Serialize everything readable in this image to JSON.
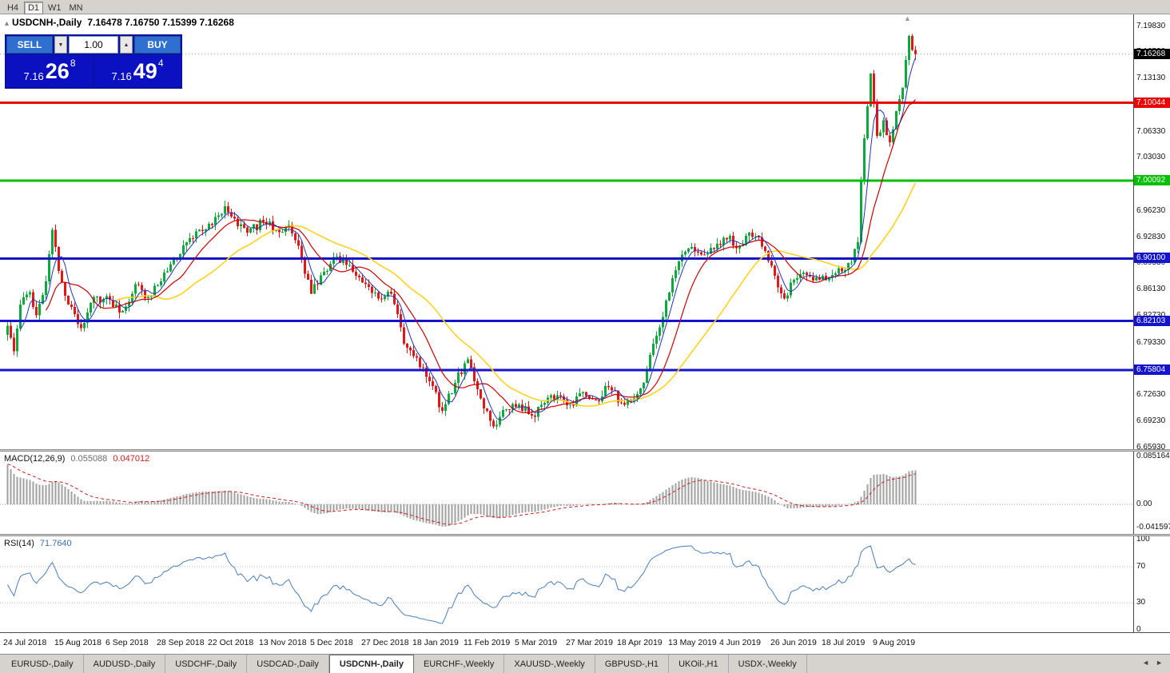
{
  "toolbar": {
    "timeframes": [
      "H4",
      "D1",
      "W1",
      "MN"
    ],
    "active_timeframe": "D1"
  },
  "chart_header": {
    "icon": "▴",
    "symbol": "USDCNH-,Daily",
    "ohlc_text": "7.16478 7.16750 7.15399 7.16268"
  },
  "one_click": {
    "sell_label": "SELL",
    "buy_label": "BUY",
    "volume": "1.00",
    "down_icon": "▼",
    "up_icon": "▲",
    "sell_price": {
      "prefix": "7.16",
      "big": "26",
      "sup": "8"
    },
    "buy_price": {
      "prefix": "7.16",
      "big": "49",
      "sup": "4"
    }
  },
  "icons": {
    "shift_marker": "▲"
  },
  "colors": {
    "bull": "#0caa3c",
    "bear": "#e41616",
    "ma_fast": "#2233bb",
    "ma_mid": "#cc0000",
    "ma_slow": "#ffd21e",
    "macd_hist": "#a0a0a0",
    "macd_signal": "#cc2020",
    "rsi_line": "#4a7ebb",
    "level_red": "#ee0000",
    "level_green": "#00c000",
    "level_blue": "#1414cc"
  },
  "chart_data": {
    "type": "candlestick",
    "symbol": "USDCNH-",
    "timeframe": "Daily",
    "current": {
      "open": 7.16478,
      "high": 7.1675,
      "low": 7.15399,
      "close": 7.16268
    },
    "total_bars": 285,
    "bars_per_label": 16,
    "x_labels": [
      "24 Jul 2018",
      "15 Aug 2018",
      "6 Sep 2018",
      "28 Sep 2018",
      "22 Oct 2018",
      "13 Nov 2018",
      "5 Dec 2018",
      "27 Dec 2018",
      "18 Jan 2019",
      "11 Feb 2019",
      "5 Mar 2019",
      "27 Mar 2019",
      "18 Apr 2019",
      "13 May 2019",
      "4 Jun 2019",
      "26 Jun 2019",
      "18 Jul 2019",
      "9 Aug 2019"
    ],
    "y_axis": {
      "min": 6.6593,
      "max": 7.1983,
      "ticks": [
        "7.19830",
        "7.16530",
        "7.13130",
        "7.09730",
        "7.06330",
        "7.03030",
        "6.99630",
        "6.96230",
        "6.92830",
        "6.89530",
        "6.86130",
        "6.82730",
        "6.79330",
        "6.75930",
        "6.72630",
        "6.69230",
        "6.65930"
      ]
    },
    "current_price_badge": {
      "label": "7.16268",
      "color": "#000000",
      "price": 7.16268
    },
    "horizontal_lines": [
      {
        "price": 7.10044,
        "label": "7.10044",
        "color": "#ee0000",
        "width": 3
      },
      {
        "price": 7.00092,
        "label": "7.00092",
        "color": "#00c000",
        "width": 3
      },
      {
        "price": 6.901,
        "label": "6.90100",
        "color": "#1414cc",
        "width": 3
      },
      {
        "price": 6.82103,
        "label": "6.82103",
        "color": "#1414cc",
        "width": 3
      },
      {
        "price": 6.75804,
        "label": "6.75804",
        "color": "#1414cc",
        "width": 3
      }
    ],
    "anchors": [
      [
        0,
        6.815
      ],
      [
        2,
        6.782
      ],
      [
        4,
        6.842
      ],
      [
        7,
        6.858
      ],
      [
        9,
        6.828
      ],
      [
        12,
        6.872
      ],
      [
        14,
        6.938
      ],
      [
        16,
        6.885
      ],
      [
        19,
        6.842
      ],
      [
        23,
        6.812
      ],
      [
        27,
        6.852
      ],
      [
        32,
        6.848
      ],
      [
        36,
        6.834
      ],
      [
        40,
        6.868
      ],
      [
        44,
        6.852
      ],
      [
        48,
        6.872
      ],
      [
        52,
        6.902
      ],
      [
        56,
        6.922
      ],
      [
        60,
        6.938
      ],
      [
        64,
        6.944
      ],
      [
        68,
        6.968
      ],
      [
        71,
        6.952
      ],
      [
        75,
        6.934
      ],
      [
        80,
        6.948
      ],
      [
        84,
        6.938
      ],
      [
        88,
        6.944
      ],
      [
        92,
        6.902
      ],
      [
        95,
        6.856
      ],
      [
        99,
        6.884
      ],
      [
        103,
        6.904
      ],
      [
        108,
        6.884
      ],
      [
        112,
        6.868
      ],
      [
        116,
        6.85
      ],
      [
        120,
        6.856
      ],
      [
        124,
        6.792
      ],
      [
        128,
        6.774
      ],
      [
        132,
        6.744
      ],
      [
        136,
        6.706
      ],
      [
        140,
        6.742
      ],
      [
        144,
        6.772
      ],
      [
        148,
        6.722
      ],
      [
        152,
        6.686
      ],
      [
        156,
        6.708
      ],
      [
        160,
        6.714
      ],
      [
        164,
        6.7
      ],
      [
        168,
        6.716
      ],
      [
        172,
        6.726
      ],
      [
        176,
        6.714
      ],
      [
        180,
        6.73
      ],
      [
        184,
        6.72
      ],
      [
        188,
        6.736
      ],
      [
        192,
        6.716
      ],
      [
        196,
        6.722
      ],
      [
        199,
        6.742
      ],
      [
        202,
        6.792
      ],
      [
        205,
        6.826
      ],
      [
        208,
        6.876
      ],
      [
        211,
        6.906
      ],
      [
        214,
        6.916
      ],
      [
        218,
        6.906
      ],
      [
        222,
        6.92
      ],
      [
        226,
        6.93
      ],
      [
        228,
        6.914
      ],
      [
        232,
        6.934
      ],
      [
        235,
        6.928
      ],
      [
        238,
        6.898
      ],
      [
        241,
        6.864
      ],
      [
        243,
        6.85
      ],
      [
        246,
        6.874
      ],
      [
        250,
        6.88
      ],
      [
        254,
        6.874
      ],
      [
        258,
        6.88
      ],
      [
        262,
        6.886
      ],
      [
        264,
        6.896
      ],
      [
        266,
        6.922
      ],
      [
        267,
        7.0
      ],
      [
        268,
        7.055
      ],
      [
        269,
        7.096
      ],
      [
        270,
        7.138
      ],
      [
        272,
        7.058
      ],
      [
        274,
        7.078
      ],
      [
        276,
        7.05
      ],
      [
        278,
        7.09
      ],
      [
        280,
        7.12
      ],
      [
        282,
        7.186
      ],
      [
        283,
        7.168
      ],
      [
        284,
        7.16268
      ]
    ],
    "moving_averages": [
      {
        "period": 34,
        "color_key": "ma_slow",
        "width": 1.6
      },
      {
        "period": 13,
        "color_key": "ma_mid",
        "width": 1.2
      },
      {
        "period": 5,
        "color_key": "ma_fast",
        "width": 1.0
      }
    ],
    "indicators": {
      "macd": {
        "label": "MACD(12,26,9)",
        "value_main": "0.055088",
        "value_signal": "0.047012",
        "axis_labels": [
          "0.085164",
          "0.00",
          "-0.041597"
        ],
        "axis_values": [
          0.085164,
          0,
          -0.041597
        ],
        "fast": 12,
        "slow": 26,
        "signal": 9
      },
      "rsi": {
        "label": "RSI(14)",
        "value": "71.7640",
        "axis_labels": [
          "100",
          "70",
          "30",
          "0"
        ],
        "axis_values": [
          100,
          70,
          30,
          0
        ],
        "levels": [
          70,
          30
        ],
        "period": 14
      }
    }
  },
  "tab_bar": {
    "tabs": [
      "EURUSD-,Daily",
      "AUDUSD-,Daily",
      "USDCHF-,Daily",
      "USDCAD-,Daily",
      "USDCNH-,Daily",
      "EURCHF-,Weekly",
      "XAUUSD-,Weekly",
      "GBPUSD-,H1",
      "UKOil-,H1",
      "USDX-,Weekly"
    ],
    "active_tab": "USDCNH-,Daily",
    "scroll_left_icon": "◄",
    "scroll_right_icon": "►"
  }
}
